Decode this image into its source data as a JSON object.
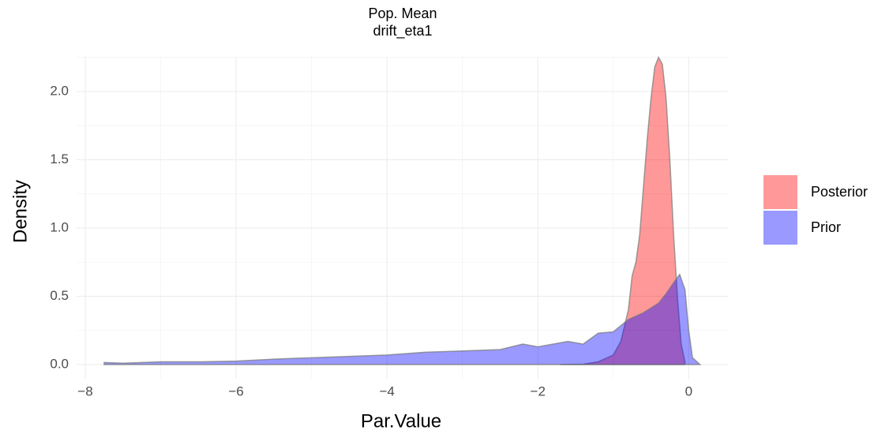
{
  "chart_data": {
    "type": "area",
    "title": "Pop. Mean",
    "subtitle": "drift_eta1",
    "x_label": "Par.Value",
    "y_label": "Density",
    "xlim": [
      -8.115,
      0.52
    ],
    "ylim": [
      -0.104,
      2.254
    ],
    "xticks": [
      {
        "value": -8,
        "label": "−8"
      },
      {
        "value": -6,
        "label": "−6"
      },
      {
        "value": -4,
        "label": "−4"
      },
      {
        "value": -2,
        "label": "−2"
      },
      0
    ],
    "yticks": [
      {
        "value": 0,
        "label": "0.0"
      },
      0.5,
      {
        "value": 1,
        "label": "1.0"
      },
      1.5,
      {
        "value": 2,
        "label": "2.0"
      }
    ],
    "xminor": [
      -7,
      -5,
      -3,
      -1
    ],
    "yminor": [
      0.25,
      0.75,
      1.25,
      1.75,
      2.25
    ],
    "grid": true,
    "legend": "right",
    "series": [
      {
        "name": "Posterior",
        "color": "#ff0000",
        "x": [
          -1.7,
          -1.4,
          -1.2,
          -1.0,
          -0.9,
          -0.8,
          -0.75,
          -0.7,
          -0.65,
          -0.6,
          -0.55,
          -0.5,
          -0.45,
          -0.4,
          -0.35,
          -0.3,
          -0.25,
          -0.2,
          -0.15,
          -0.1,
          -0.05
        ],
        "values": [
          0,
          0.003,
          0.02,
          0.07,
          0.17,
          0.4,
          0.65,
          0.75,
          0.95,
          1.3,
          1.65,
          1.95,
          2.18,
          2.25,
          2.2,
          1.95,
          1.5,
          0.95,
          0.5,
          0.15,
          0.02
        ]
      },
      {
        "name": "Prior",
        "color": "#0000ff",
        "x": [
          -7.75,
          -7.5,
          -7,
          -6.5,
          -6,
          -5.5,
          -5,
          -4.5,
          -4,
          -3.5,
          -3,
          -2.5,
          -2.2,
          -2,
          -1.6,
          -1.4,
          -1.2,
          -1,
          -0.8,
          -0.6,
          -0.4,
          -0.3,
          -0.2,
          -0.12,
          -0.05,
          0,
          0.05,
          0.15
        ],
        "values": [
          0.015,
          0.01,
          0.02,
          0.02,
          0.025,
          0.04,
          0.05,
          0.06,
          0.07,
          0.09,
          0.1,
          0.11,
          0.15,
          0.13,
          0.17,
          0.15,
          0.23,
          0.24,
          0.33,
          0.38,
          0.45,
          0.52,
          0.6,
          0.66,
          0.55,
          0.25,
          0.05,
          0
        ]
      }
    ]
  }
}
